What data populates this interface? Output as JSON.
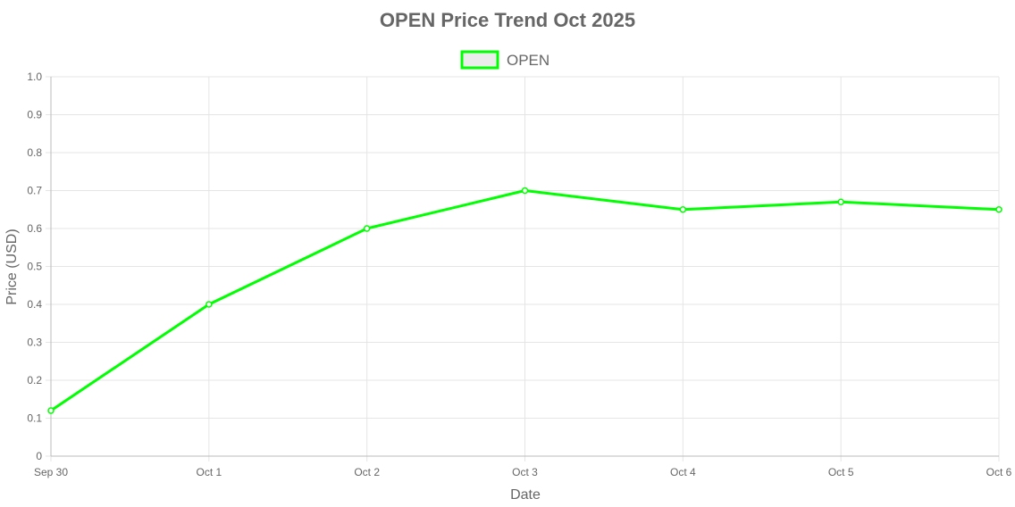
{
  "chart_data": {
    "type": "line",
    "title": "OPEN Price Trend Oct 2025",
    "xlabel": "Date",
    "ylabel": "Price (USD)",
    "categories": [
      "Sep 30",
      "Oct 1",
      "Oct 2",
      "Oct 3",
      "Oct 4",
      "Oct 5",
      "Oct 6"
    ],
    "series": [
      {
        "name": "OPEN",
        "color": "#00ff00",
        "values": [
          0.12,
          0.4,
          0.6,
          0.7,
          0.65,
          0.67,
          0.65
        ]
      }
    ],
    "ylim": [
      0,
      1.0
    ],
    "yticks": [
      "0",
      "0.1",
      "0.2",
      "0.3",
      "0.4",
      "0.5",
      "0.6",
      "0.7",
      "0.8",
      "0.9",
      "1.0"
    ],
    "grid": true,
    "legend": "top-center",
    "colors": {
      "grid": "#e5e5e5",
      "axis": "#bbbbbb",
      "text": "#666666",
      "legend_fill": "#ececec"
    }
  }
}
